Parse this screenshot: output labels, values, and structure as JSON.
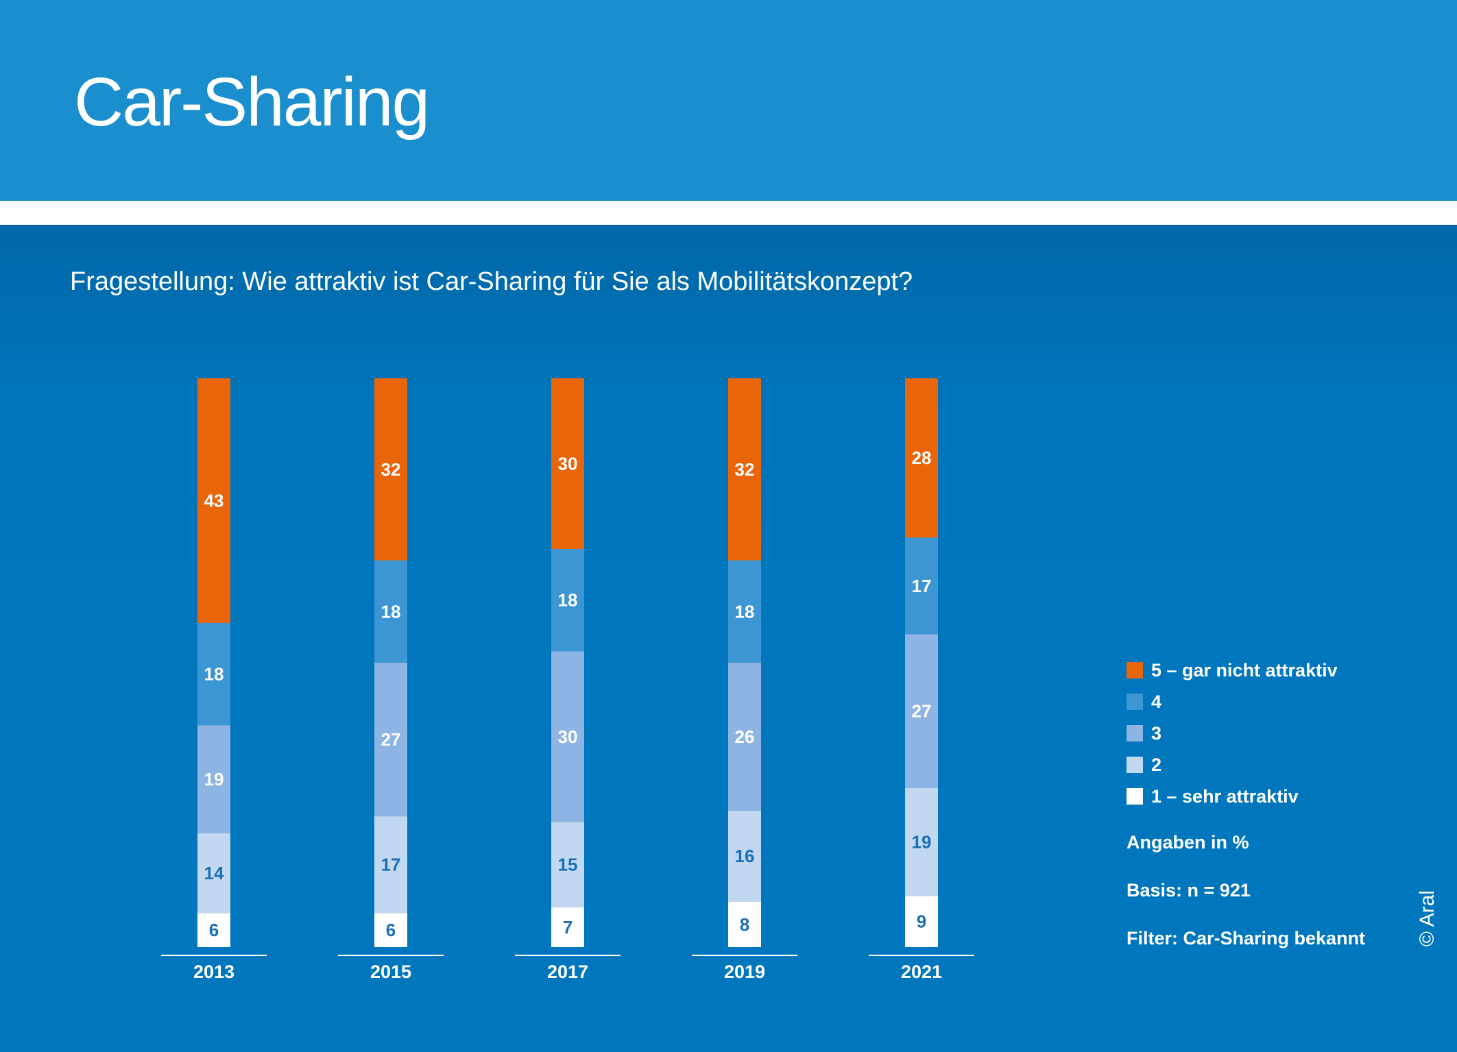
{
  "header": {
    "title": "Car-Sharing"
  },
  "question": "Fragestellung: Wie attraktiv ist Car-Sharing für Sie als Mobilitätskonzept?",
  "legend": [
    {
      "label": "5 – gar nicht attraktiv",
      "color": "#e8650a"
    },
    {
      "label": "4",
      "color": "#3d96d4"
    },
    {
      "label": "3",
      "color": "#8db4e2"
    },
    {
      "label": "2",
      "color": "#c2d8f1"
    },
    {
      "label": "1 – sehr attraktiv",
      "color": "#ffffff"
    }
  ],
  "notes": {
    "unit": "Angaben in %",
    "base": "Basis: n = 921",
    "filter": "Filter: Car-Sharing bekannt"
  },
  "copyright": "© Aral",
  "colors": {
    "label_dark": "#1a6fb5",
    "label_light": "#ffffff"
  },
  "chart_data": {
    "type": "bar",
    "stacked": true,
    "percent": true,
    "categories": [
      "2013",
      "2015",
      "2017",
      "2019",
      "2021"
    ],
    "series": [
      {
        "name": "1 – sehr attraktiv",
        "values": [
          6,
          6,
          7,
          8,
          9
        ]
      },
      {
        "name": "2",
        "values": [
          14,
          17,
          15,
          16,
          19
        ]
      },
      {
        "name": "3",
        "values": [
          19,
          27,
          30,
          26,
          27
        ]
      },
      {
        "name": "4",
        "values": [
          18,
          18,
          18,
          18,
          17
        ]
      },
      {
        "name": "5 – gar nicht attraktiv",
        "values": [
          43,
          32,
          30,
          32,
          28
        ]
      }
    ],
    "ylim": [
      0,
      100
    ],
    "grid": false,
    "legend_position": "right"
  }
}
